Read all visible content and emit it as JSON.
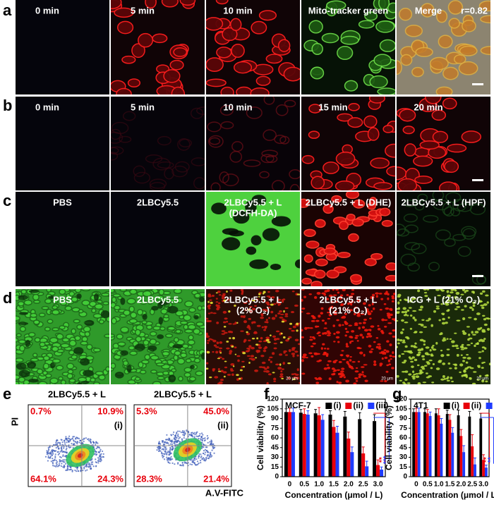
{
  "panels": {
    "a": {
      "letter": "a",
      "labels": [
        "0 min",
        "5 min",
        "10 min",
        "Mito-tracker green",
        "Merge"
      ],
      "note": "r=0.82"
    },
    "b": {
      "letter": "b",
      "labels": [
        "0 min",
        "5 min",
        "10 min",
        "15 min",
        "20 min"
      ]
    },
    "c": {
      "letter": "c",
      "labels": [
        [
          "PBS"
        ],
        [
          "2LBCy5.5"
        ],
        [
          "2LBCy5.5 + L",
          "(DCFH-DA)"
        ],
        [
          "2LBCy5.5 + L (DHE)"
        ],
        [
          "2LBCy5.5 + L (HPF)"
        ]
      ]
    },
    "d": {
      "letter": "d",
      "labels": [
        [
          "PBS"
        ],
        [
          "2LBCy5.5"
        ],
        [
          "2LBCy5.5 + L",
          "(2% O₂)"
        ],
        [
          "2LBCy5.5 + L",
          "(21% O₂)"
        ],
        [
          "ICG + L (21% O₂)"
        ]
      ],
      "scale": "20 μm"
    },
    "e": {
      "letter": "e",
      "y_label": "PI",
      "x_label": "A.V-FITC",
      "plots": [
        {
          "title": "2LBCy5.5 + L",
          "tag": "(i)",
          "quadrants": [
            "0.7%",
            "10.9%",
            "64.1%",
            "24.3%"
          ]
        },
        {
          "title": "2LBCy5.5 + L",
          "tag": "(ii)",
          "quadrants": [
            "5.3%",
            "45.0%",
            "28.3%",
            "21.4%"
          ]
        }
      ]
    }
  },
  "chart_data": [
    {
      "type": "bar",
      "letter": "f",
      "title": "MCF-7",
      "y_label": "Cell viability (%)",
      "x_label": "Concentration (μmol / L)",
      "categories": [
        "0",
        "0.5",
        "1.0",
        "1.5",
        "2.0",
        "2.5",
        "3.0"
      ],
      "series": [
        {
          "name": "(i)",
          "color": "#000000",
          "values": [
            100,
            99,
            98,
            96,
            93,
            89,
            86
          ],
          "errors": [
            5,
            5,
            6,
            6,
            8,
            10,
            10
          ]
        },
        {
          "name": "(ii)",
          "color": "#e8000b",
          "values": [
            100,
            97,
            95,
            77,
            59,
            36,
            18
          ],
          "errors": [
            6,
            8,
            12,
            10,
            10,
            10,
            8
          ]
        },
        {
          "name": "(iii)",
          "color": "#1f3bff",
          "values": [
            100,
            96,
            88,
            68,
            38,
            16,
            11
          ],
          "errors": [
            6,
            6,
            8,
            10,
            8,
            8,
            4
          ]
        }
      ],
      "annotations": [
        {
          "text": "**",
          "color": "#e8000b"
        },
        {
          "text": "***",
          "color": "#1f3bff"
        }
      ],
      "ylim": [
        0,
        120
      ],
      "yticks": [
        0,
        15,
        30,
        45,
        60,
        75,
        90,
        105,
        120
      ]
    },
    {
      "type": "bar",
      "letter": "g",
      "title": "4T1",
      "y_label": "Cell viability (%)",
      "x_label": "Concentration (μmol / L)",
      "categories": [
        "0",
        "0.5",
        "1.0",
        "1.5",
        "2.0",
        "2.5",
        "3.0"
      ],
      "series": [
        {
          "name": "(i)",
          "color": "#000000",
          "values": [
            100,
            100,
            98,
            97,
            95,
            93,
            90
          ],
          "errors": [
            5,
            5,
            7,
            6,
            8,
            8,
            8
          ]
        },
        {
          "name": "(ii)",
          "color": "#e8000b",
          "values": [
            100,
            98,
            95,
            88,
            63,
            47,
            26
          ],
          "errors": [
            6,
            6,
            10,
            8,
            10,
            18,
            8
          ]
        },
        {
          "name": "(iii)",
          "color": "#1f3bff",
          "values": [
            100,
            94,
            82,
            68,
            38,
            19,
            14
          ],
          "errors": [
            6,
            6,
            8,
            8,
            10,
            10,
            4
          ]
        }
      ],
      "annotations": [
        {
          "text": "**",
          "color": "#e8000b"
        },
        {
          "text": "**",
          "color": "#1f3bff"
        }
      ],
      "ylim": [
        0,
        120
      ],
      "yticks": [
        0,
        15,
        30,
        45,
        60,
        75,
        90,
        105,
        120
      ]
    }
  ]
}
